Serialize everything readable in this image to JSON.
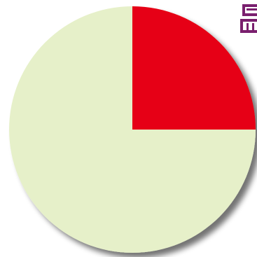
{
  "chart_data": {
    "type": "pie",
    "title": "",
    "start_angle_deg": 90,
    "direction": "clockwise",
    "legend": "none",
    "slices": [
      {
        "value": 25,
        "color": "#e60012"
      },
      {
        "value": 75,
        "color": "#e6f0c9"
      }
    ]
  },
  "colors": {
    "shadow": "#333333",
    "corner_glyph": "#7a1f6e"
  }
}
